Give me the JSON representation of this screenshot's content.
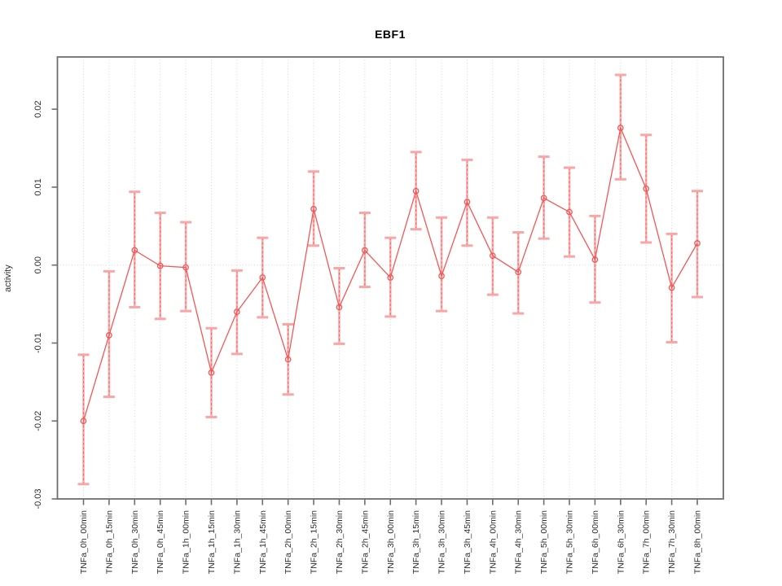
{
  "chart_data": {
    "type": "line",
    "title": "EBF1",
    "xlabel": "",
    "ylabel": "activity",
    "legend_position": "none",
    "categories": [
      "TNFa_0h_00min",
      "TNFa_0h_15min",
      "TNFa_0h_30min",
      "TNFa_0h_45min",
      "TNFa_1h_00min",
      "TNFa_1h_15min",
      "TNFa_1h_30min",
      "TNFa_1h_45min",
      "TNFa_2h_00min",
      "TNFa_2h_15min",
      "TNFa_2h_30min",
      "TNFa_2h_45min",
      "TNFa_3h_00min",
      "TNFa_3h_15min",
      "TNFa_3h_30min",
      "TNFa_3h_45min",
      "TNFa_4h_00min",
      "TNFa_4h_30min",
      "TNFa_5h_00min",
      "TNFa_5h_30min",
      "TNFa_6h_00min",
      "TNFa_6h_30min",
      "TNFa_7h_00min",
      "TNFa_7h_30min",
      "TNFa_8h_00min"
    ],
    "series": [
      {
        "name": "EBF1",
        "values": [
          -0.02,
          -0.009,
          0.0019,
          -0.0001,
          -0.0003,
          -0.0138,
          -0.006,
          -0.0016,
          -0.0121,
          0.0072,
          -0.0054,
          0.0019,
          -0.0016,
          0.0095,
          -0.0014,
          0.0081,
          0.0012,
          -0.0009,
          0.0086,
          0.0068,
          0.0007,
          0.0176,
          0.0098,
          -0.0029,
          0.0028
        ],
        "error_low": [
          -0.0281,
          -0.0169,
          -0.0054,
          -0.0069,
          -0.0059,
          -0.0195,
          -0.0114,
          -0.0067,
          -0.0166,
          0.0025,
          -0.0101,
          -0.0028,
          -0.0066,
          0.0046,
          -0.0059,
          0.0025,
          -0.0038,
          -0.0062,
          0.0034,
          0.0011,
          -0.0048,
          0.011,
          0.0029,
          -0.0099,
          -0.0041
        ],
        "error_high": [
          -0.0115,
          -0.0008,
          0.0094,
          0.0067,
          0.0055,
          -0.0081,
          -0.0007,
          0.0035,
          -0.0076,
          0.012,
          -0.0004,
          0.0067,
          0.0035,
          0.0145,
          0.0061,
          0.0135,
          0.0061,
          0.0042,
          0.0139,
          0.0125,
          0.0063,
          0.0244,
          0.0167,
          0.004,
          0.0095
        ]
      }
    ],
    "ylim": [
      -0.03,
      0.0267
    ],
    "yticks": [
      -0.03,
      -0.02,
      -0.01,
      0,
      0.01,
      0.02
    ],
    "ytick_labels": [
      "-0.03",
      "-0.02",
      "-0.01",
      "0.00",
      "0.01",
      "0.02"
    ],
    "grid": {
      "vertical": "dotted line at every category",
      "horizontal": "dotted line at 0.00 only"
    },
    "colors": {
      "series": "#f25757",
      "error_bar_fill": "#f9a6a6",
      "grid": "#d6d6d6",
      "axis": "#6e6e6e",
      "tick_text": "#2e2e2e",
      "title_text": "#000000",
      "background": "#ffffff"
    }
  }
}
